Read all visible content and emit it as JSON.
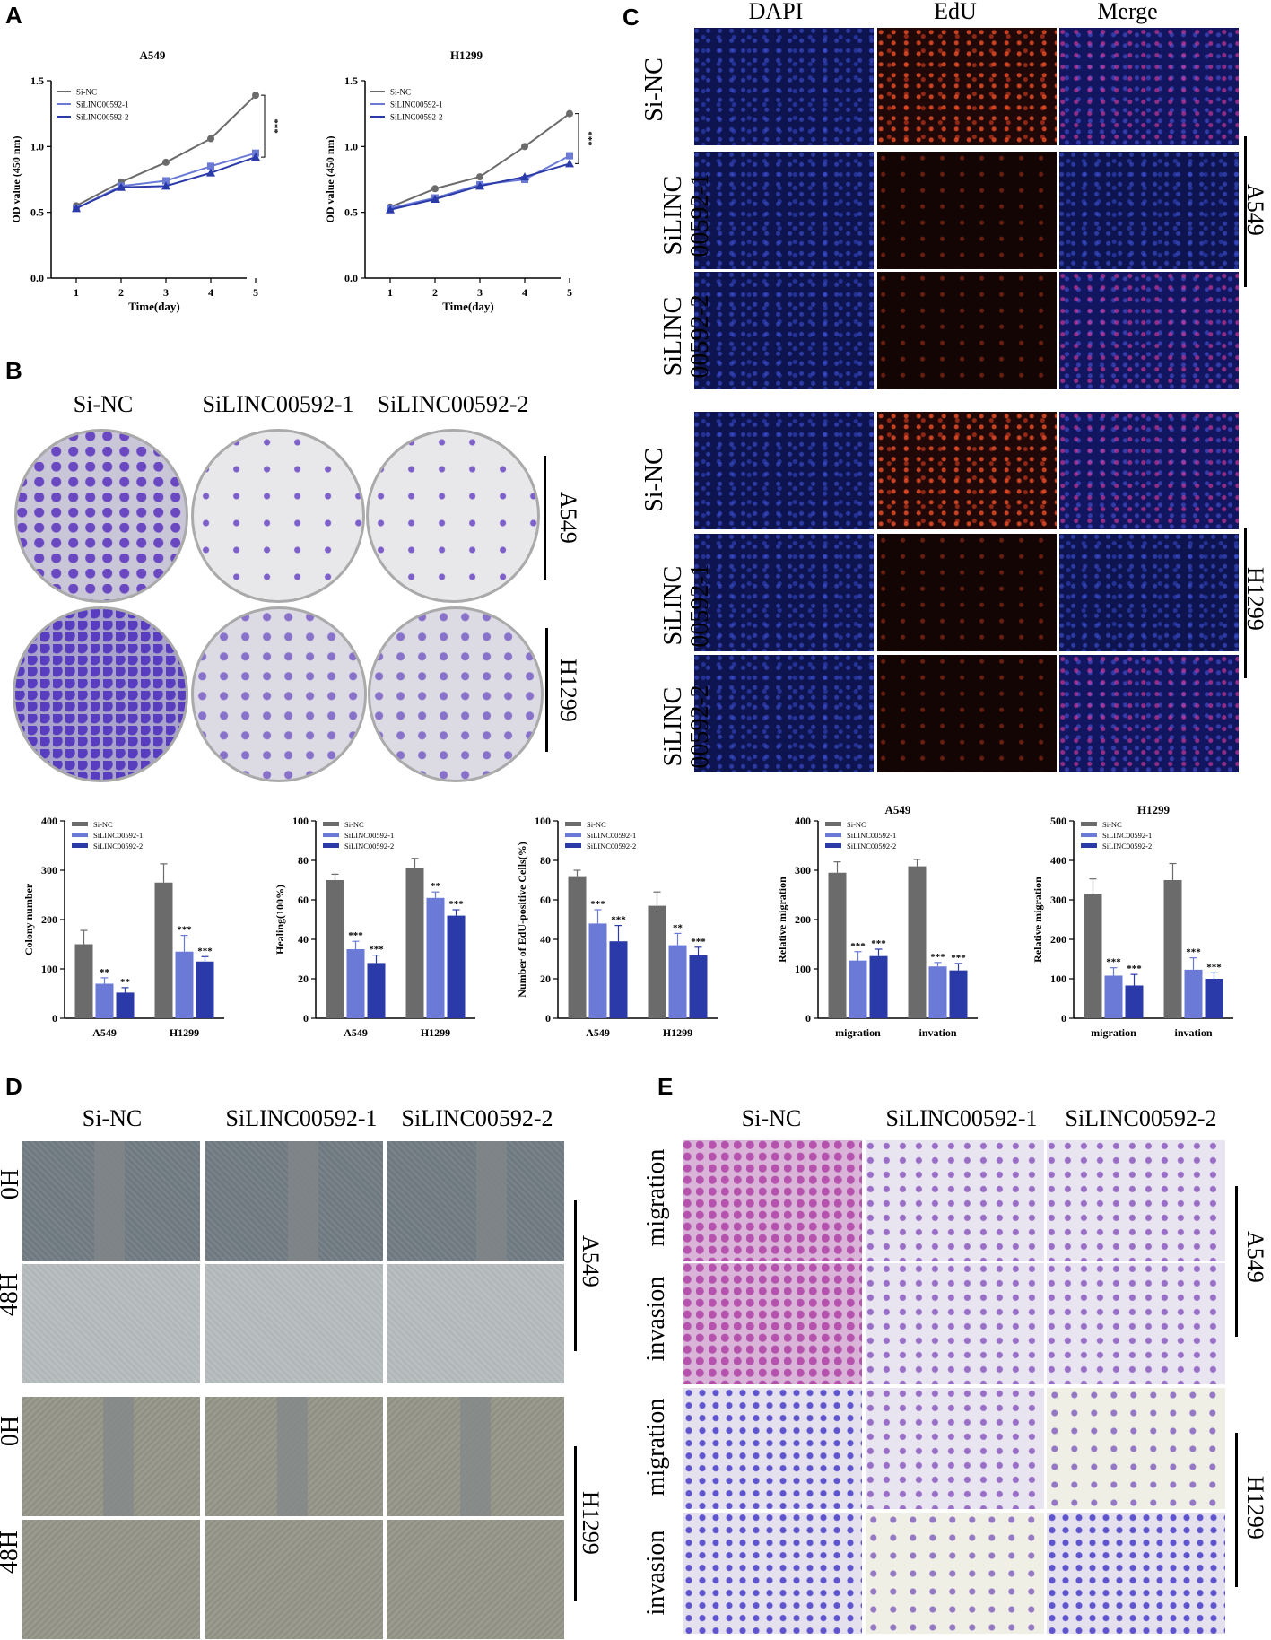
{
  "panel_letters": {
    "a": "A",
    "b": "B",
    "c": "C",
    "d": "D",
    "e": "E"
  },
  "colors": {
    "si_nc": "#6b6b6b",
    "si1": "#6a7ad6",
    "si2": "#2a3aa8"
  },
  "cck8": [
    {
      "title": "A549",
      "xlabel": "Time(day)",
      "ylabel": "OD value (450 nm)",
      "sig": "***",
      "x": [
        1,
        2,
        3,
        4,
        5
      ],
      "ylim": [
        0,
        1.5
      ],
      "yticks": [
        "0.0",
        "0.5",
        "1.0",
        "1.5"
      ],
      "series": [
        {
          "name": "Si-NC",
          "values": [
            0.55,
            0.73,
            0.88,
            1.06,
            1.39
          ]
        },
        {
          "name": "SiLINC00592-1",
          "values": [
            0.53,
            0.7,
            0.74,
            0.85,
            0.95
          ]
        },
        {
          "name": "SiLINC00592-2",
          "values": [
            0.53,
            0.69,
            0.7,
            0.8,
            0.92
          ]
        }
      ]
    },
    {
      "title": "H1299",
      "xlabel": "Time(day)",
      "ylabel": "OD value (450 nm)",
      "sig": "***",
      "x": [
        1,
        2,
        3,
        4,
        5
      ],
      "ylim": [
        0,
        1.5
      ],
      "yticks": [
        "0.0",
        "0.5",
        "1.0",
        "1.5"
      ],
      "series": [
        {
          "name": "Si-NC",
          "values": [
            0.54,
            0.68,
            0.77,
            1.0,
            1.25
          ]
        },
        {
          "name": "SiLINC00592-1",
          "values": [
            0.53,
            0.61,
            0.71,
            0.75,
            0.93
          ]
        },
        {
          "name": "SiLINC00592-2",
          "values": [
            0.52,
            0.6,
            0.7,
            0.77,
            0.87
          ]
        }
      ]
    }
  ],
  "colony_headers": [
    "Si-NC",
    "SiLINC00592-1",
    "SiLINC00592-2"
  ],
  "edu_headers": [
    "DAPI",
    "EdU",
    "Merge"
  ],
  "edu_rows": [
    "Si-NC",
    "SiLINC\n00592-1",
    "SiLINC\n00592-2"
  ],
  "cells": {
    "a549": "A549",
    "h1299": "H1299"
  },
  "bars": [
    {
      "title": "",
      "ylabel": "Colony number",
      "ylim": [
        0,
        400
      ],
      "yticks": [
        "0",
        "100",
        "200",
        "300",
        "400"
      ],
      "categories": [
        "A549",
        "H1299"
      ],
      "series": [
        {
          "name": "Si-NC",
          "values": [
            150,
            275
          ],
          "err": [
            28,
            38
          ],
          "sig": [
            "",
            ""
          ]
        },
        {
          "name": "SiLINC00592-1",
          "values": [
            70,
            135
          ],
          "err": [
            12,
            33
          ],
          "sig": [
            "**",
            "***"
          ]
        },
        {
          "name": "SiLINC00592-2",
          "values": [
            52,
            115
          ],
          "err": [
            10,
            10
          ],
          "sig": [
            "**",
            "***"
          ]
        }
      ]
    },
    {
      "title": "",
      "ylabel": "Healing(100%)",
      "ylim": [
        0,
        100
      ],
      "yticks": [
        "0",
        "20",
        "40",
        "60",
        "80",
        "100"
      ],
      "categories": [
        "A549",
        "H1299"
      ],
      "series": [
        {
          "name": "Si-NC",
          "values": [
            70,
            76
          ],
          "err": [
            3,
            5
          ],
          "sig": [
            "",
            ""
          ]
        },
        {
          "name": "SiLINC00592-1",
          "values": [
            35,
            61
          ],
          "err": [
            4,
            3
          ],
          "sig": [
            "***",
            "**"
          ]
        },
        {
          "name": "SiLINC00592-2",
          "values": [
            28,
            52
          ],
          "err": [
            4,
            3
          ],
          "sig": [
            "***",
            "***"
          ]
        }
      ]
    },
    {
      "title": "",
      "ylabel": "Number of EdU-positive Cells(%)",
      "ylim": [
        0,
        100
      ],
      "yticks": [
        "0",
        "20",
        "40",
        "60",
        "80",
        "100"
      ],
      "categories": [
        "A549",
        "H1299"
      ],
      "series": [
        {
          "name": "Si-NC",
          "values": [
            72,
            57
          ],
          "err": [
            3,
            7
          ],
          "sig": [
            "",
            ""
          ]
        },
        {
          "name": "SiLINC00592-1",
          "values": [
            48,
            37
          ],
          "err": [
            7,
            6
          ],
          "sig": [
            "***",
            "**"
          ]
        },
        {
          "name": "SiLINC00592-2",
          "values": [
            39,
            32
          ],
          "err": [
            8,
            4
          ],
          "sig": [
            "***",
            "***"
          ]
        }
      ]
    },
    {
      "title": "A549",
      "ylabel": "Relative migration",
      "ylim": [
        0,
        400
      ],
      "yticks": [
        "0",
        "100",
        "200",
        "300",
        "400"
      ],
      "categories": [
        "migration",
        "invation"
      ],
      "series": [
        {
          "name": "Si-NC",
          "values": [
            295,
            308
          ],
          "err": [
            22,
            14
          ],
          "sig": [
            "",
            ""
          ]
        },
        {
          "name": "SiLINC00592-1",
          "values": [
            117,
            105
          ],
          "err": [
            18,
            8
          ],
          "sig": [
            "***",
            "***"
          ]
        },
        {
          "name": "SiLINC00592-2",
          "values": [
            126,
            97
          ],
          "err": [
            14,
            14
          ],
          "sig": [
            "***",
            "***"
          ]
        }
      ]
    },
    {
      "title": "H1299",
      "ylabel": "Relative migration",
      "ylim": [
        0,
        500
      ],
      "yticks": [
        "0",
        "100",
        "200",
        "300",
        "400",
        "500"
      ],
      "categories": [
        "migration",
        "invation"
      ],
      "series": [
        {
          "name": "Si-NC",
          "values": [
            315,
            350
          ],
          "err": [
            38,
            42
          ],
          "sig": [
            "",
            ""
          ]
        },
        {
          "name": "SiLINC00592-1",
          "values": [
            108,
            123
          ],
          "err": [
            20,
            30
          ],
          "sig": [
            "***",
            "***"
          ]
        },
        {
          "name": "SiLINC00592-2",
          "values": [
            83,
            100
          ],
          "err": [
            28,
            15
          ],
          "sig": [
            "***",
            "***"
          ]
        }
      ]
    }
  ],
  "wound_rows": [
    "0H",
    "48H",
    "0H",
    "48H"
  ],
  "transwell_rows": [
    "migration",
    "invasion",
    "migration",
    "invasion"
  ]
}
